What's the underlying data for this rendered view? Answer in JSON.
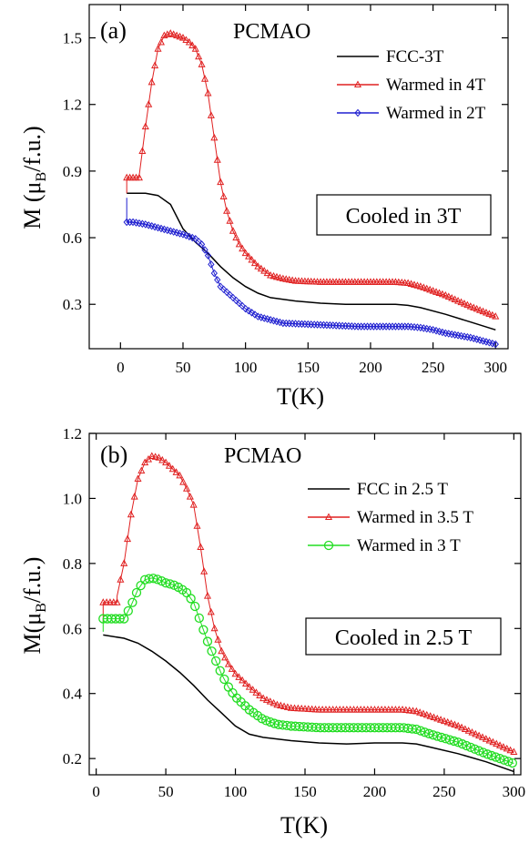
{
  "chart_data": [
    {
      "type": "line",
      "panel_label": "(a)",
      "title": "PCMAO",
      "annotation": "Cooled in 3T",
      "xlabel": "T(K)",
      "ylabel": "M (μB/f.u.)",
      "ylabel_parts": {
        "pre": "M (",
        "mu": "μ",
        "sub": "B",
        "post": "/f.u.)"
      },
      "xlim": [
        -25,
        310
      ],
      "ylim": [
        0.1,
        1.65
      ],
      "xticks": [
        0,
        50,
        100,
        150,
        200,
        250,
        300
      ],
      "yticks": [
        0.3,
        0.6,
        0.9,
        1.2,
        1.5
      ],
      "ytick_labels": [
        "0.3",
        "0.6",
        "0.9",
        "1.2",
        "1.5"
      ],
      "legend_position": "top-right",
      "series": [
        {
          "name": "FCC-3T",
          "color": "#000000",
          "marker": "none",
          "x": [
            5,
            20,
            30,
            40,
            50,
            60,
            70,
            80,
            90,
            100,
            110,
            120,
            140,
            160,
            180,
            200,
            220,
            230,
            240,
            260,
            280,
            300
          ],
          "y": [
            0.8,
            0.8,
            0.79,
            0.75,
            0.64,
            0.58,
            0.53,
            0.47,
            0.42,
            0.38,
            0.35,
            0.33,
            0.315,
            0.305,
            0.3,
            0.3,
            0.3,
            0.295,
            0.285,
            0.255,
            0.22,
            0.185
          ]
        },
        {
          "name": "Warmed in 4T",
          "color": "#e02020",
          "marker": "triangle",
          "x": [
            5,
            5,
            15,
            15,
            20,
            25,
            30,
            35,
            40,
            45,
            50,
            55,
            60,
            65,
            70,
            75,
            80,
            85,
            90,
            95,
            100,
            110,
            120,
            130,
            140,
            160,
            180,
            200,
            220,
            230,
            240,
            260,
            280,
            300
          ],
          "y": [
            0.8,
            0.87,
            0.87,
            0.88,
            1.1,
            1.3,
            1.45,
            1.51,
            1.52,
            1.51,
            1.5,
            1.48,
            1.45,
            1.38,
            1.25,
            1.05,
            0.85,
            0.72,
            0.63,
            0.57,
            0.53,
            0.47,
            0.43,
            0.415,
            0.405,
            0.4,
            0.4,
            0.4,
            0.4,
            0.395,
            0.38,
            0.34,
            0.29,
            0.245
          ]
        },
        {
          "name": "Warmed in 2T",
          "color": "#2020d0",
          "marker": "diamond",
          "x": [
            5,
            5,
            10,
            20,
            30,
            40,
            50,
            60,
            65,
            70,
            75,
            80,
            90,
            100,
            110,
            120,
            130,
            150,
            170,
            190,
            210,
            230,
            240,
            250,
            260,
            280,
            300
          ],
          "y": [
            0.78,
            0.67,
            0.67,
            0.66,
            0.645,
            0.63,
            0.615,
            0.595,
            0.57,
            0.52,
            0.44,
            0.38,
            0.33,
            0.28,
            0.245,
            0.23,
            0.215,
            0.21,
            0.205,
            0.2,
            0.2,
            0.2,
            0.195,
            0.185,
            0.17,
            0.15,
            0.12
          ]
        }
      ]
    },
    {
      "type": "line",
      "panel_label": "(b)",
      "title": "PCMAO",
      "annotation": "Cooled in 2.5 T",
      "xlabel": "T(K)",
      "ylabel": "M(μB/f.u.)",
      "ylabel_parts": {
        "pre": "M(",
        "mu": "μ",
        "sub": "B",
        "post": "/f.u.)"
      },
      "xlim": [
        -5,
        305
      ],
      "ylim": [
        0.15,
        1.2
      ],
      "xticks": [
        0,
        50,
        100,
        150,
        200,
        250,
        300
      ],
      "yticks": [
        0.2,
        0.4,
        0.6,
        0.8,
        1.0,
        1.2
      ],
      "ytick_labels": [
        "0.2",
        "0.4",
        "0.6",
        "0.8",
        "1.0",
        "1.2"
      ],
      "legend_position": "top-right",
      "series": [
        {
          "name": "FCC in 2.5 T",
          "color": "#000000",
          "marker": "none",
          "x": [
            5,
            20,
            30,
            40,
            50,
            60,
            70,
            80,
            90,
            100,
            110,
            120,
            140,
            160,
            180,
            200,
            220,
            230,
            240,
            260,
            280,
            300
          ],
          "y": [
            0.58,
            0.57,
            0.555,
            0.53,
            0.5,
            0.465,
            0.425,
            0.38,
            0.34,
            0.3,
            0.275,
            0.265,
            0.255,
            0.248,
            0.245,
            0.248,
            0.248,
            0.245,
            0.235,
            0.215,
            0.19,
            0.16
          ]
        },
        {
          "name": "Warmed in 3.5 T",
          "color": "#e02020",
          "marker": "triangle",
          "x": [
            5,
            5,
            15,
            15,
            20,
            25,
            30,
            35,
            40,
            45,
            50,
            55,
            60,
            65,
            70,
            75,
            80,
            85,
            90,
            95,
            100,
            110,
            120,
            130,
            140,
            160,
            180,
            200,
            220,
            230,
            240,
            260,
            280,
            300
          ],
          "y": [
            0.62,
            0.68,
            0.68,
            0.7,
            0.8,
            0.95,
            1.06,
            1.11,
            1.13,
            1.125,
            1.11,
            1.09,
            1.07,
            1.03,
            0.98,
            0.85,
            0.7,
            0.6,
            0.53,
            0.49,
            0.46,
            0.42,
            0.385,
            0.365,
            0.355,
            0.35,
            0.35,
            0.35,
            0.35,
            0.345,
            0.33,
            0.3,
            0.26,
            0.22
          ]
        },
        {
          "name": "Warmed in 3 T",
          "color": "#22dd22",
          "marker": "circle",
          "x": [
            5,
            5,
            15,
            20,
            25,
            30,
            35,
            40,
            45,
            50,
            55,
            60,
            65,
            70,
            75,
            80,
            85,
            90,
            95,
            100,
            110,
            120,
            130,
            140,
            160,
            180,
            200,
            220,
            230,
            240,
            260,
            280,
            300
          ],
          "y": [
            0.59,
            0.63,
            0.63,
            0.63,
            0.67,
            0.72,
            0.75,
            0.755,
            0.75,
            0.74,
            0.735,
            0.725,
            0.71,
            0.68,
            0.62,
            0.56,
            0.51,
            0.46,
            0.42,
            0.39,
            0.35,
            0.32,
            0.305,
            0.3,
            0.295,
            0.295,
            0.295,
            0.295,
            0.29,
            0.275,
            0.25,
            0.215,
            0.185
          ]
        }
      ]
    }
  ]
}
